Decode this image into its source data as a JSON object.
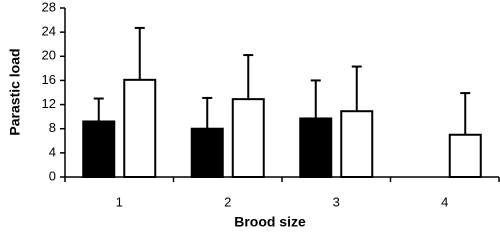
{
  "chart_data": {
    "type": "bar",
    "x_label": "Brood size",
    "y_label": "Parastic load",
    "categories": [
      "1",
      "2",
      "3",
      "4"
    ],
    "series": [
      {
        "color": "#000000",
        "values": [
          9.2,
          8,
          9.7,
          null
        ],
        "errors": [
          3.8,
          5.1,
          6.3,
          null
        ]
      },
      {
        "color": "#ffffff",
        "values": [
          16.1,
          12.9,
          10.9,
          7
        ],
        "errors": [
          8.6,
          7.3,
          7.4,
          6.9
        ]
      }
    ],
    "ylim": [
      0,
      28
    ],
    "yticks": [
      0,
      4,
      8,
      12,
      16,
      20,
      24,
      28
    ],
    "grid": false
  }
}
